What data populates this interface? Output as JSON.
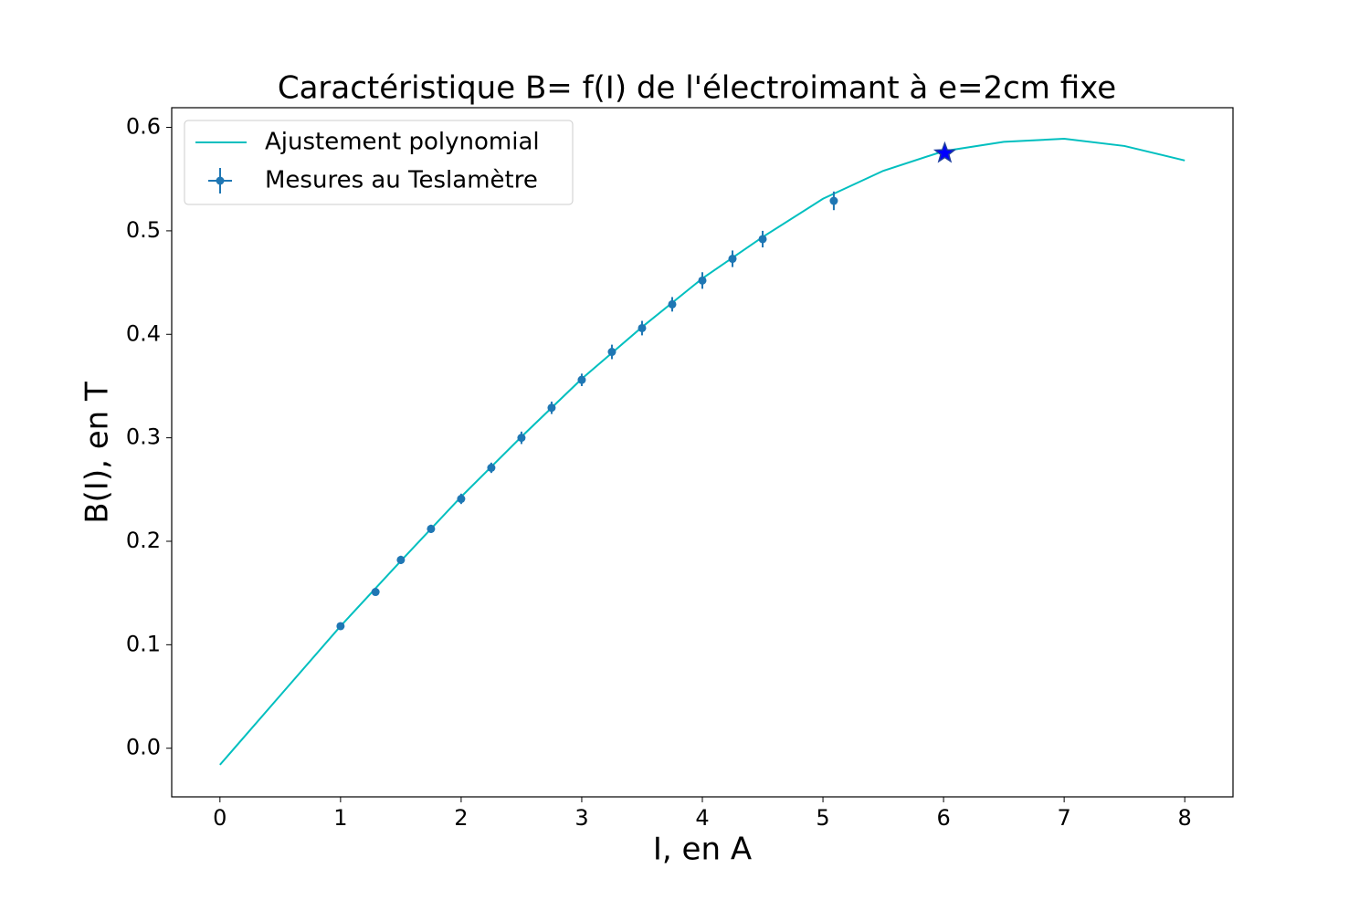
{
  "chart_data": {
    "type": "line",
    "title": "Caractéristique B= f(I) de l'électroimant à e=2cm fixe",
    "x_label": "I, en A",
    "y_label": "B(I), en T",
    "xlim": [
      -0.4,
      8.4
    ],
    "ylim": [
      -0.047,
      0.619
    ],
    "xticks": [
      0,
      1,
      2,
      3,
      4,
      5,
      6,
      7,
      8
    ],
    "yticks": [
      {
        "value": 0,
        "label": "0.0"
      },
      0.1,
      0.2,
      0.3,
      0.4,
      0.5,
      0.6
    ],
    "grid": false,
    "legend": "upper left",
    "series": [
      {
        "name": "Ajustement polynomial",
        "style": "line",
        "color": "#00bfbf",
        "x": [
          0,
          0.5,
          1,
          1.5,
          2,
          2.5,
          3,
          3.5,
          4,
          4.5,
          5,
          5.5,
          6,
          6.5,
          7,
          7.5,
          8
        ],
        "values": [
          -0.016,
          0.051,
          0.118,
          0.181,
          0.243,
          0.301,
          0.357,
          0.407,
          0.454,
          0.494,
          0.531,
          0.558,
          0.577,
          0.586,
          0.589,
          0.582,
          0.568
        ]
      },
      {
        "name": "Mesures au Teslamètre",
        "style": "errorbar",
        "color": "#1f77b4",
        "x": [
          1.0,
          1.29,
          1.5,
          1.75,
          2.0,
          2.25,
          2.5,
          2.75,
          3.0,
          3.25,
          3.5,
          3.75,
          4.0,
          4.25,
          4.5,
          5.09
        ],
        "values": [
          0.118,
          0.151,
          0.182,
          0.212,
          0.241,
          0.271,
          0.3,
          0.329,
          0.356,
          0.383,
          0.406,
          0.429,
          0.452,
          0.473,
          0.492,
          0.529
        ],
        "yerr": [
          0.003,
          0.003,
          0.004,
          0.004,
          0.005,
          0.005,
          0.006,
          0.006,
          0.006,
          0.007,
          0.007,
          0.007,
          0.008,
          0.008,
          0.008,
          0.009
        ]
      },
      {
        "style": "star",
        "color": "#0000ff",
        "x": [
          6.01
        ],
        "values": [
          0.575
        ]
      }
    ]
  }
}
